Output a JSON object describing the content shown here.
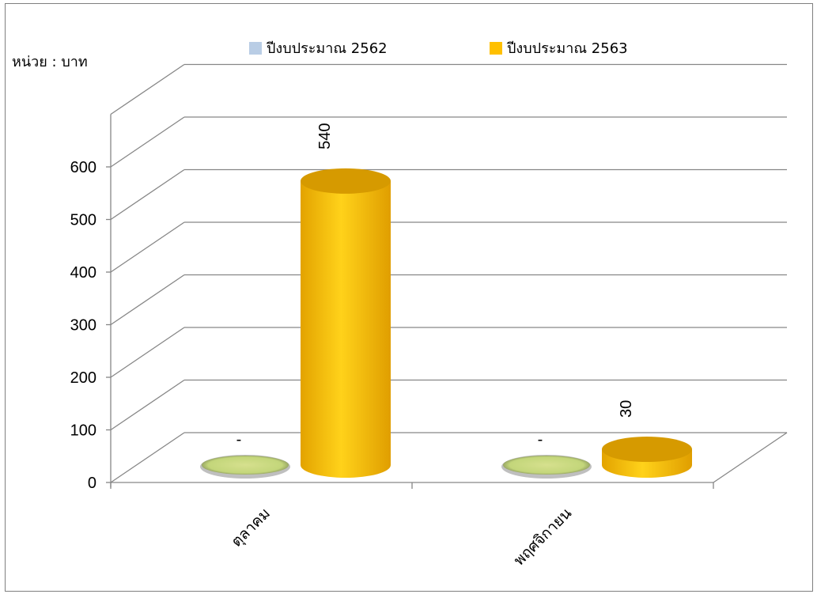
{
  "chart_data": {
    "type": "bar",
    "title": "",
    "unit_label": "หน่วย : บาท",
    "categories": [
      "ตุลาคม",
      "พฤศจิกายน"
    ],
    "series": [
      {
        "name": "ปีงบประมาณ 2562",
        "values": [
          0,
          0
        ],
        "labels": [
          "-",
          "-"
        ],
        "color": "#b9cde5",
        "display_color": "#c3d67a"
      },
      {
        "name": "ปีงบประมาณ 2563",
        "values": [
          540,
          30
        ],
        "labels": [
          "540",
          "30"
        ],
        "color": "#ffc000"
      }
    ],
    "yticks": [
      0,
      100,
      200,
      300,
      400,
      500,
      600
    ],
    "ylim": [
      0,
      700
    ],
    "grid": true,
    "legend_position": "top",
    "style": "3d-cylinder"
  }
}
